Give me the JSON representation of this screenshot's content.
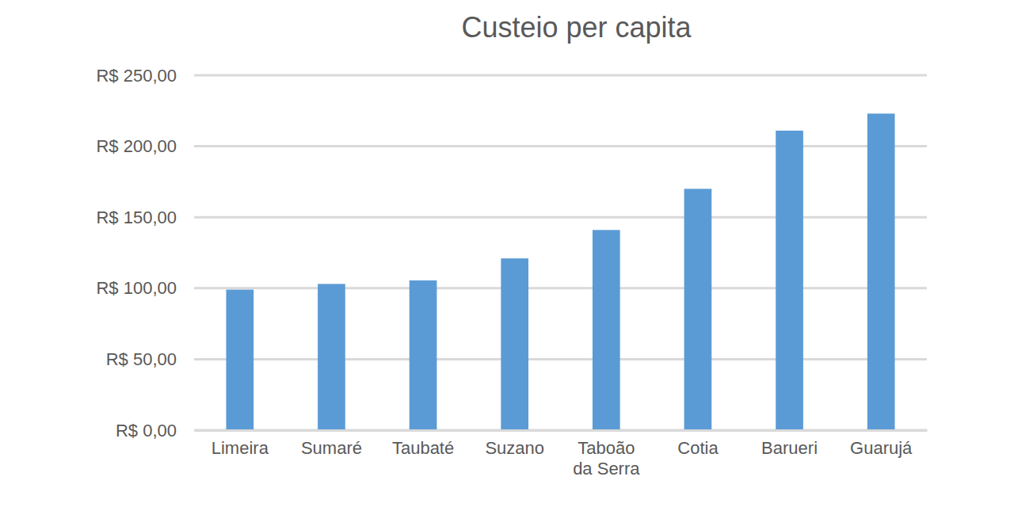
{
  "chart_data": {
    "type": "bar",
    "title": "Custeio per capita",
    "categories": [
      "Limeira",
      "Sumaré",
      "Taubaté",
      "Suzano",
      "Taboão da Serra",
      "Cotia",
      "Barueri",
      "Guarujá"
    ],
    "values": [
      99,
      103,
      105.5,
      121,
      141,
      170,
      211,
      223
    ],
    "color": "#5b9bd5",
    "ylim": [
      0,
      250
    ],
    "yticks": [
      {
        "value": 0,
        "label": "R$ 0,00"
      },
      {
        "value": 50,
        "label": "R$ 50,00"
      },
      {
        "value": 100,
        "label": "R$ 100,00"
      },
      {
        "value": 150,
        "label": "R$ 150,00"
      },
      {
        "value": 200,
        "label": "R$ 200,00"
      },
      {
        "value": 250,
        "label": "R$ 250,00"
      }
    ],
    "grid": true
  }
}
